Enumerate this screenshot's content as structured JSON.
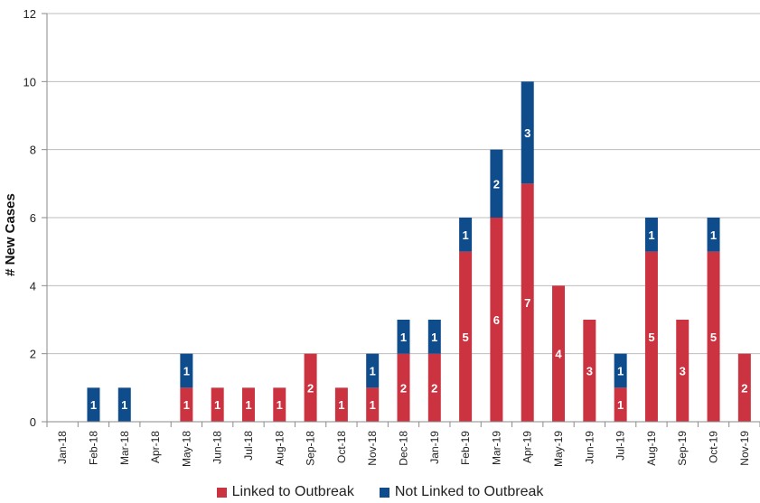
{
  "chart_data": {
    "type": "bar",
    "stacked": true,
    "title": "",
    "xlabel": "",
    "ylabel": "# New Cases",
    "ylim": [
      0,
      12
    ],
    "yticks": [
      0,
      2,
      4,
      6,
      8,
      10,
      12
    ],
    "grid": true,
    "legend_position": "bottom",
    "categories": [
      "Jan-18",
      "Feb-18",
      "Mar-18",
      "Apr-18",
      "May-18",
      "Jun-18",
      "Jul-18",
      "Aug-18",
      "Sep-18",
      "Oct-18",
      "Nov-18",
      "Dec-18",
      "Jan-19",
      "Feb-19",
      "Mar-19",
      "Apr-19",
      "May-19",
      "Jun-19",
      "Jul-19",
      "Aug-19",
      "Sep-19",
      "Oct-19",
      "Nov-19"
    ],
    "series": [
      {
        "name": "Linked to Outbreak",
        "color": "#cc3340",
        "values": [
          0,
          0,
          0,
          0,
          1,
          1,
          1,
          1,
          2,
          1,
          1,
          2,
          2,
          5,
          6,
          7,
          4,
          3,
          1,
          5,
          3,
          5,
          2
        ]
      },
      {
        "name": "Not Linked to Outbreak",
        "color": "#0f4c8c",
        "values": [
          0,
          1,
          1,
          0,
          1,
          0,
          0,
          0,
          0,
          0,
          1,
          1,
          1,
          1,
          2,
          3,
          0,
          0,
          1,
          1,
          0,
          1,
          0
        ]
      }
    ]
  }
}
